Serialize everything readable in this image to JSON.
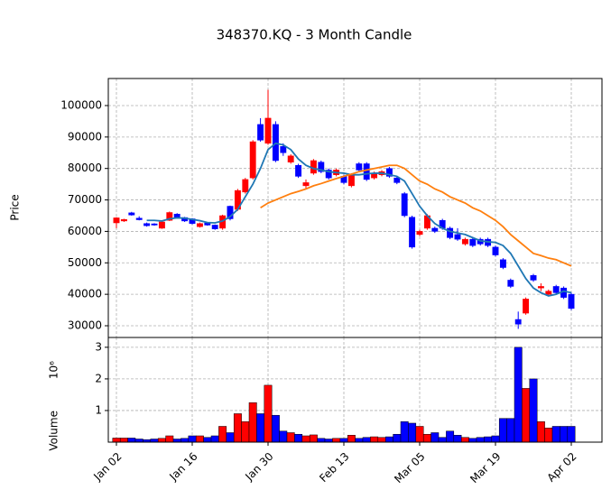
{
  "chart_data": {
    "type": "candle",
    "title": "348370.KQ - 3 Month Candle",
    "ylabel": "Price",
    "volume_label": "Volume",
    "volume_offset": "10⁶",
    "up_color": "#ff0000",
    "down_color": "#0000ff",
    "grid": true,
    "categories": [
      "Jan 02",
      null,
      null,
      null,
      null,
      null,
      null,
      null,
      null,
      null,
      "Jan 16",
      null,
      null,
      null,
      null,
      null,
      null,
      null,
      null,
      null,
      "Jan 30",
      null,
      null,
      null,
      null,
      null,
      null,
      null,
      null,
      null,
      "Feb 13",
      null,
      null,
      null,
      null,
      null,
      null,
      null,
      null,
      null,
      "Mar 05",
      null,
      null,
      null,
      null,
      null,
      null,
      null,
      null,
      null,
      "Mar 19",
      null,
      null,
      null,
      null,
      null,
      null,
      null,
      null,
      null,
      "Apr 02"
    ],
    "open": [
      62700,
      63300,
      65900,
      64200,
      62500,
      62400,
      61000,
      63500,
      65500,
      64400,
      64000,
      61500,
      62700,
      62000,
      61000,
      68000,
      67000,
      72500,
      77000,
      94000,
      88000,
      94000,
      87000,
      82000,
      81000,
      74500,
      78500,
      82000,
      79500,
      78000,
      77500,
      74500,
      81500,
      81500,
      77000,
      78000,
      80000,
      77000,
      72000,
      64500,
      59000,
      61000,
      61000,
      63500,
      61000,
      59000,
      56000,
      57500,
      57500,
      57500,
      55000,
      51000,
      44500,
      32000,
      34000,
      46000,
      42000,
      40000,
      42500,
      42000,
      40000
    ],
    "high": [
      64500,
      64000,
      66200,
      64800,
      62800,
      62600,
      63200,
      66300,
      65800,
      64600,
      64200,
      62800,
      62900,
      62200,
      65300,
      68200,
      73500,
      77000,
      89000,
      96000,
      105000,
      95000,
      88000,
      84500,
      81500,
      76500,
      83000,
      82500,
      80000,
      80000,
      78000,
      78500,
      82000,
      82000,
      79000,
      79500,
      80500,
      77500,
      72500,
      65000,
      60500,
      65500,
      61500,
      64000,
      61500,
      61000,
      58000,
      58000,
      58000,
      58000,
      55500,
      51500,
      45000,
      34500,
      39000,
      46500,
      43500,
      41500,
      43000,
      42500,
      40500
    ],
    "low": [
      61000,
      63000,
      65000,
      63500,
      61500,
      61800,
      60800,
      63300,
      64200,
      63000,
      62200,
      61200,
      61800,
      60500,
      60500,
      63500,
      66500,
      72000,
      76500,
      88500,
      87500,
      82000,
      84000,
      81500,
      77000,
      73500,
      78000,
      78500,
      76500,
      77500,
      75000,
      74000,
      79000,
      76000,
      76500,
      77500,
      77000,
      75000,
      64500,
      54500,
      58500,
      60500,
      59500,
      60500,
      57500,
      57000,
      55500,
      55000,
      55500,
      55000,
      52000,
      48000,
      42000,
      29000,
      33500,
      44000,
      41000,
      39500,
      40000,
      38500,
      35000
    ],
    "close": [
      64300,
      63800,
      65200,
      63700,
      61800,
      62000,
      63000,
      66000,
      64500,
      63300,
      62500,
      62500,
      62000,
      60800,
      65000,
      64000,
      73000,
      76500,
      88500,
      89000,
      96000,
      82500,
      85000,
      84000,
      77500,
      75500,
      82500,
      79000,
      77000,
      79500,
      75500,
      78000,
      79500,
      76500,
      78500,
      79000,
      77500,
      75500,
      65000,
      55000,
      60000,
      65000,
      60000,
      61000,
      58000,
      57500,
      57500,
      55500,
      56000,
      55500,
      52500,
      48500,
      42500,
      30500,
      38500,
      44500,
      42500,
      41000,
      40500,
      39000,
      35500
    ],
    "volume": [
      0.13,
      0.13,
      0.13,
      0.1,
      0.08,
      0.1,
      0.12,
      0.2,
      0.1,
      0.12,
      0.2,
      0.2,
      0.15,
      0.2,
      0.5,
      0.3,
      0.9,
      0.65,
      1.25,
      0.9,
      1.8,
      0.85,
      0.35,
      0.3,
      0.25,
      0.2,
      0.23,
      0.12,
      0.1,
      0.12,
      0.12,
      0.22,
      0.12,
      0.15,
      0.17,
      0.15,
      0.17,
      0.25,
      0.65,
      0.6,
      0.5,
      0.25,
      0.3,
      0.15,
      0.35,
      0.22,
      0.15,
      0.12,
      0.15,
      0.17,
      0.2,
      0.75,
      0.75,
      3.0,
      1.7,
      2.0,
      0.65,
      0.45,
      0.5,
      0.5,
      0.5
    ],
    "series": [
      {
        "color": "#1f77b4",
        "values": [
          null,
          null,
          null,
          null,
          63500,
          63500,
          63300,
          64000,
          64300,
          64200,
          63800,
          63400,
          62800,
          62700,
          63300,
          64700,
          67000,
          71000,
          75000,
          80000,
          86000,
          88000,
          87500,
          86000,
          83000,
          81000,
          80000,
          79500,
          79000,
          78700,
          78500,
          78000,
          78000,
          78300,
          78500,
          78500,
          78000,
          77500,
          76000,
          72000,
          68000,
          65000,
          62500,
          61000,
          60000,
          59500,
          59000,
          58000,
          57000,
          56700,
          56500,
          55500,
          53000,
          49000,
          45000,
          42000,
          40500,
          39500,
          40000,
          41000,
          40500
        ]
      },
      {
        "color": "#ff7f0e",
        "values": [
          null,
          null,
          null,
          null,
          null,
          null,
          null,
          null,
          null,
          null,
          null,
          null,
          null,
          null,
          null,
          null,
          null,
          null,
          null,
          67500,
          69000,
          70000,
          71000,
          72000,
          72700,
          73500,
          74500,
          75200,
          76000,
          76800,
          77500,
          78200,
          79000,
          79500,
          80000,
          80500,
          81000,
          81000,
          80000,
          78000,
          76000,
          75000,
          73500,
          72500,
          71000,
          70000,
          69000,
          67500,
          66500,
          65000,
          63500,
          61500,
          59000,
          57000,
          55000,
          53000,
          52300,
          51500,
          51000,
          50000,
          49000
        ]
      }
    ],
    "ylim": [
      26270,
      108600
    ],
    "yticks": [
      30000,
      40000,
      50000,
      60000,
      70000,
      80000,
      90000,
      100000
    ],
    "volume_ylim": [
      0,
      3.31
    ],
    "volume_yticks": [
      1,
      2,
      3
    ]
  }
}
